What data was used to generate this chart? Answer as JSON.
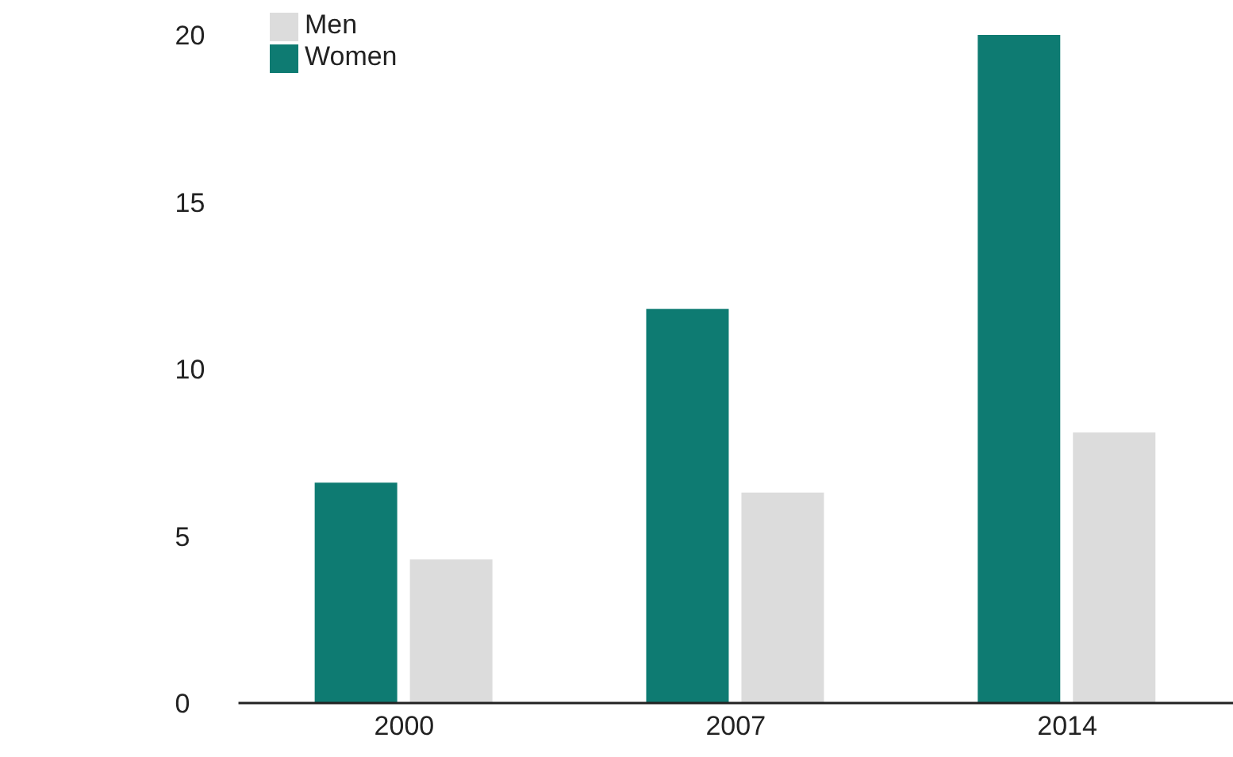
{
  "chart_data": {
    "type": "bar",
    "categories": [
      "2000",
      "2007",
      "2014"
    ],
    "series": [
      {
        "name": "Women",
        "color": "#0e7b72",
        "values": [
          6.6,
          11.8,
          20.0
        ]
      },
      {
        "name": "Men",
        "color": "#dcdcdc",
        "values": [
          4.3,
          6.3,
          8.1
        ]
      }
    ],
    "ylim": [
      0,
      20
    ],
    "yticks": [
      0,
      5,
      10,
      15,
      20
    ],
    "grid": false,
    "legend": "top left"
  }
}
